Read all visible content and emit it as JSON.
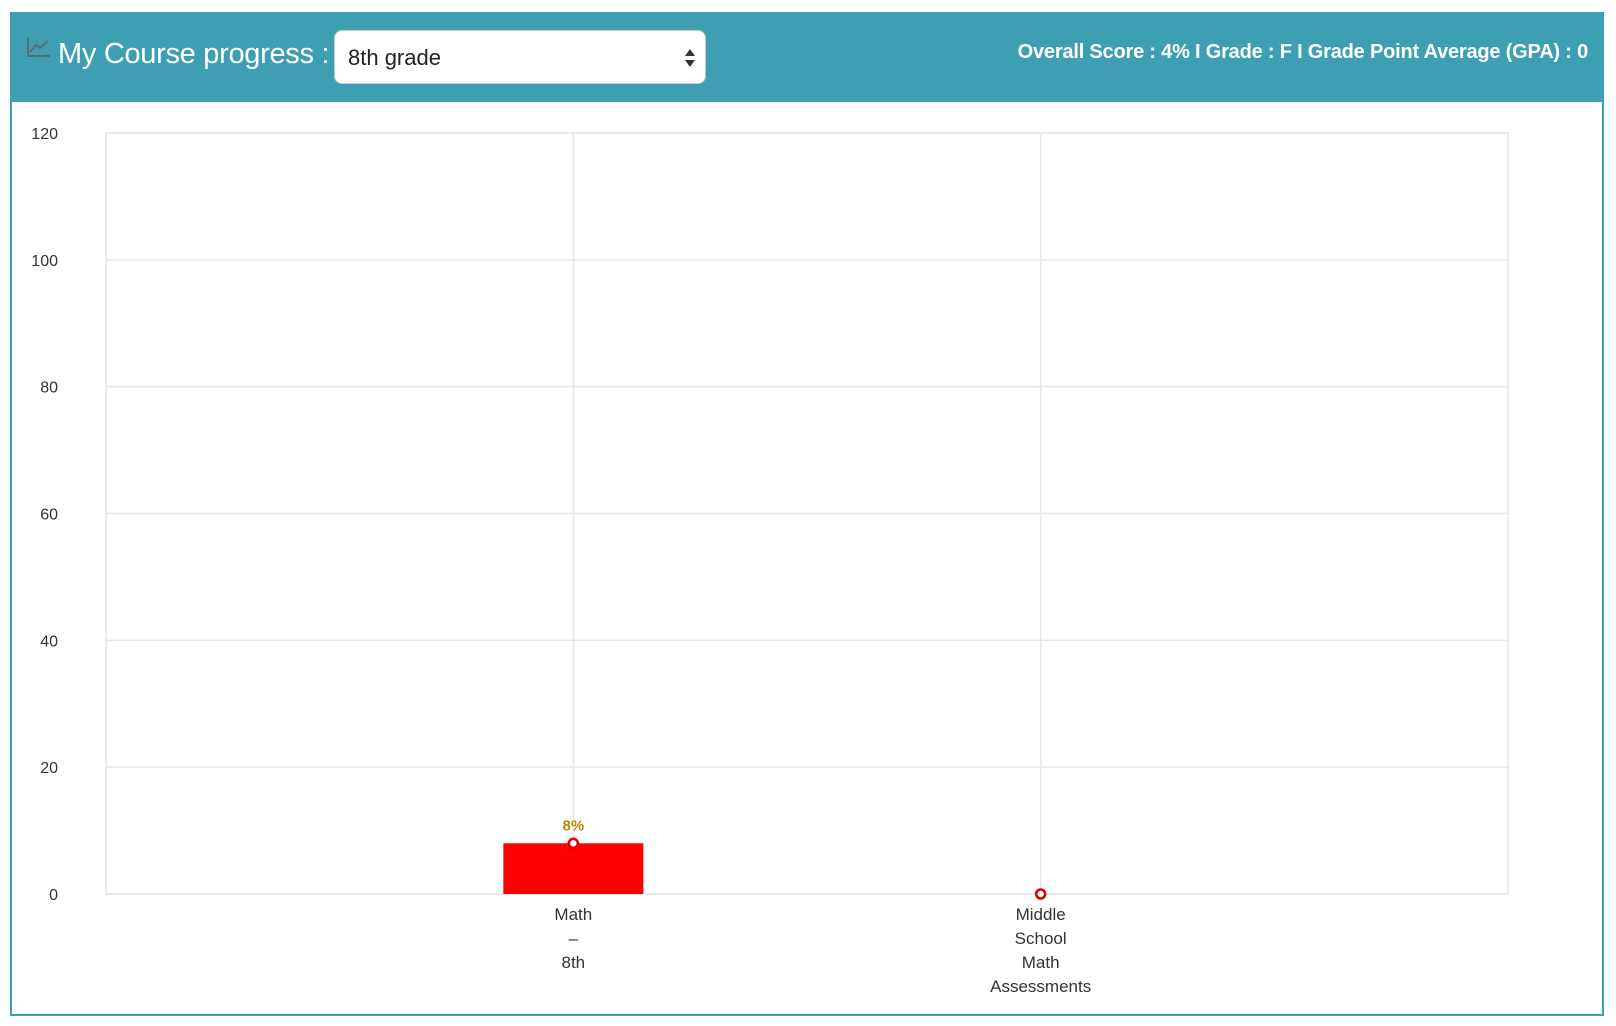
{
  "header": {
    "title": "My Course progress :",
    "selected_grade": "8th grade",
    "summary": "Overall Score : 4% I Grade : F I Grade Point Average (GPA) : 0",
    "bar_color": "#3f9fb2",
    "icon": "line-chart-icon"
  },
  "chart_data": {
    "type": "bar",
    "categories": [
      [
        "Math",
        "–",
        "8th"
      ],
      [
        "Middle",
        "School",
        "Math",
        "Assessments"
      ]
    ],
    "values": [
      8,
      0
    ],
    "data_labels": [
      "8%",
      ""
    ],
    "ylim": [
      0,
      120
    ],
    "yticks": [
      0,
      20,
      40,
      60,
      80,
      100,
      120
    ],
    "grid": true,
    "bar_color": "#ff0000",
    "marker_color": "#e00000",
    "label_color": "#b58a00"
  }
}
